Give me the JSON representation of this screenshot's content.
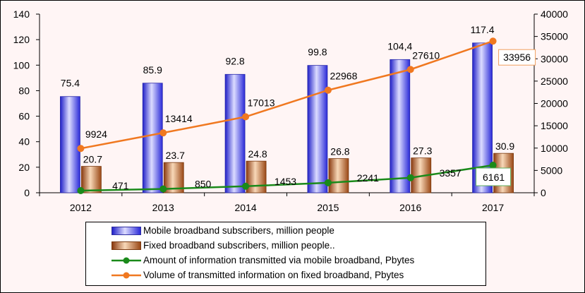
{
  "chart_data": {
    "type": "bar+line",
    "categories": [
      "2012",
      "2013",
      "2014",
      "2015",
      "2016",
      "2017"
    ],
    "left_axis": {
      "ylim": [
        0,
        140
      ],
      "ticks": [
        "0",
        "20",
        "40",
        "60",
        "80",
        "100",
        "120",
        "140"
      ]
    },
    "right_axis": {
      "ylim": [
        0,
        40000
      ],
      "ticks": [
        "0",
        "5000",
        "10000",
        "15000",
        "20000",
        "25000",
        "30000",
        "35000",
        "40000"
      ]
    },
    "series": [
      {
        "name": "Mobile broadband subscribers, million people",
        "kind": "bar",
        "axis": "left",
        "color": "#3b3bf0",
        "values": [
          75.4,
          85.9,
          92.8,
          99.8,
          104.4,
          117.4
        ],
        "labels": [
          "75.4",
          "85.9",
          "92.8",
          "99.8",
          "104,4",
          "117.4"
        ]
      },
      {
        "name": "Fixed broadband subscribers, million people..",
        "kind": "bar",
        "axis": "left",
        "color": "#c0652a",
        "values": [
          20.7,
          23.7,
          24.8,
          26.8,
          27.3,
          30.9
        ],
        "labels": [
          "20.7",
          "23.7",
          "24.8",
          "26.8",
          "27.3",
          "30.9"
        ]
      },
      {
        "name": "Amount of information transmitted via mobile broadband, Pbytes",
        "kind": "line",
        "axis": "right",
        "color": "#1a8a1a",
        "values": [
          471,
          850,
          1453,
          2241,
          3357,
          6161
        ],
        "labels": [
          "471",
          "850",
          "1453",
          "2241",
          "3357",
          "6161"
        ]
      },
      {
        "name": "Volume of transmitted information on fixed broadband, Pbytes",
        "kind": "line",
        "axis": "right",
        "color": "#f07820",
        "values": [
          9924,
          13414,
          17013,
          22968,
          27610,
          33956
        ],
        "labels": [
          "9924",
          "13414",
          "17013",
          "22968",
          "27610",
          "33956"
        ]
      }
    ],
    "legend_position": "bottom"
  }
}
